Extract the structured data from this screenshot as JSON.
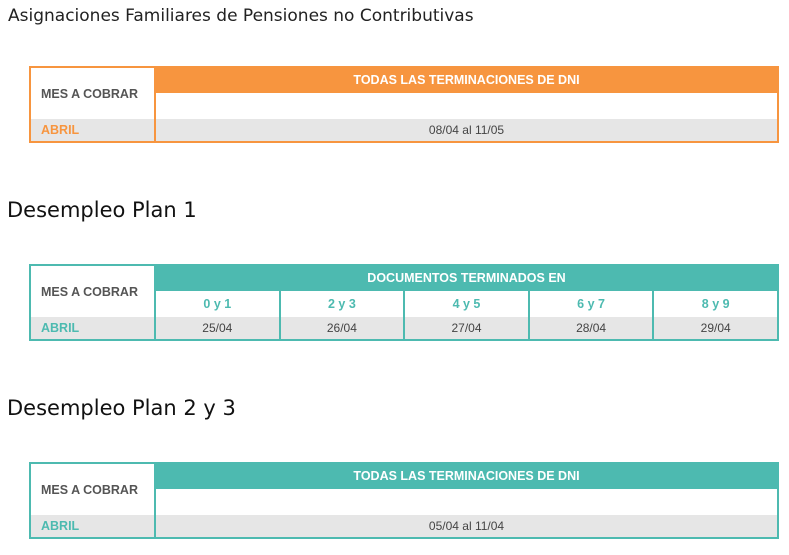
{
  "title": "Asignaciones Familiares de Pensiones no Contributivas",
  "colors": {
    "orange": "#f7953f",
    "teal": "#4dbab0",
    "row_gray": "#e6e6e6"
  },
  "table1": {
    "mes_header": "MES A COBRAR",
    "header": "TODAS LAS TERMINACIONES DE DNI",
    "month": "ABRIL",
    "value": "08/04 al 11/05"
  },
  "section2": {
    "title": "Desempleo Plan 1"
  },
  "table2": {
    "mes_header": "MES A COBRAR",
    "header": "DOCUMENTOS TERMINADOS EN",
    "month": "ABRIL",
    "columns": [
      "0 y 1",
      "2 y 3",
      "4 y 5",
      "6 y 7",
      "8 y 9"
    ],
    "values": [
      "25/04",
      "26/04",
      "27/04",
      "28/04",
      "29/04"
    ]
  },
  "section3": {
    "title": "Desempleo Plan 2 y 3"
  },
  "table3": {
    "mes_header": "MES A COBRAR",
    "header": "TODAS LAS TERMINACIONES DE DNI",
    "month": "ABRIL",
    "value": "05/04 al 11/04"
  }
}
